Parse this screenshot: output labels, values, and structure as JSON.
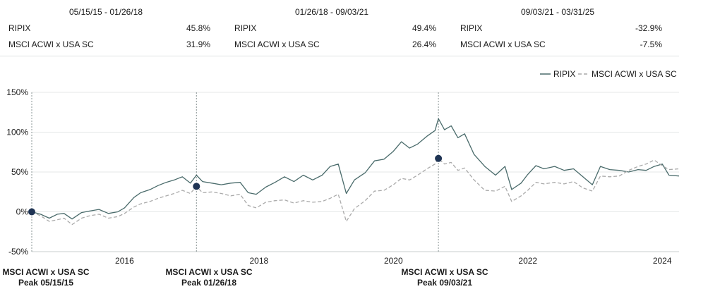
{
  "periods": [
    {
      "title": "05/15/15 - 01/26/18",
      "rows": [
        {
          "name": "RIPIX",
          "value": "45.8%"
        },
        {
          "name": "MSCI ACWI x USA SC",
          "value": "31.9%"
        }
      ]
    },
    {
      "title": "01/26/18 - 09/03/21",
      "rows": [
        {
          "name": "RIPIX",
          "value": "49.4%"
        },
        {
          "name": "MSCI ACWI x USA SC",
          "value": "26.4%"
        }
      ]
    },
    {
      "title": "09/03/21 - 03/31/25",
      "rows": [
        {
          "name": "RIPIX",
          "value": "-32.9%"
        },
        {
          "name": "MSCI ACWI x USA SC",
          "value": "-7.5%"
        }
      ]
    }
  ],
  "peaks": [
    {
      "line1": "MSCI ACWI x USA SC",
      "line2": "Peak 05/15/15"
    },
    {
      "line1": "MSCI ACWI x USA SC",
      "line2": "Peak 01/26/18"
    },
    {
      "line1": "MSCI ACWI x USA SC",
      "line2": "Peak 09/03/21"
    }
  ],
  "colors": {
    "ripix": "#4a6b6b",
    "msci": "#aaaaaa",
    "grid": "#e4e7e7",
    "marker": "#1f3454",
    "text": "#1a1a1a"
  },
  "chart_data": {
    "type": "line",
    "title": "",
    "xlabel": "",
    "ylabel": "",
    "xlim": [
      2014.62,
      2024.25
    ],
    "ylim": [
      -50,
      150
    ],
    "yticks": [
      -50,
      0,
      50,
      100,
      150
    ],
    "ytick_labels": [
      "-50%",
      "0%",
      "50%",
      "100%",
      "150%"
    ],
    "xticks": [
      2016,
      2018,
      2020,
      2022,
      2024
    ],
    "xtick_labels": [
      "2016",
      "2018",
      "2020",
      "2022",
      "2024"
    ],
    "grid": true,
    "legend": "top-right",
    "peak_x": [
      2014.62,
      2017.07,
      2020.67
    ],
    "peak_y": [
      0,
      32,
      67
    ],
    "series": [
      {
        "name": "RIPIX",
        "style": "solid",
        "x": [
          2014.62,
          2014.75,
          2014.88,
          2015.0,
          2015.1,
          2015.22,
          2015.36,
          2015.48,
          2015.62,
          2015.76,
          2015.9,
          2016.0,
          2016.14,
          2016.24,
          2016.38,
          2016.5,
          2016.62,
          2016.74,
          2016.86,
          2016.98,
          2017.07,
          2017.16,
          2017.3,
          2017.44,
          2017.58,
          2017.72,
          2017.84,
          2017.96,
          2018.1,
          2018.24,
          2018.38,
          2018.52,
          2018.66,
          2018.8,
          2018.94,
          2019.06,
          2019.18,
          2019.3,
          2019.42,
          2019.58,
          2019.72,
          2019.86,
          2020.0,
          2020.12,
          2020.24,
          2020.36,
          2020.5,
          2020.62,
          2020.67,
          2020.76,
          2020.86,
          2020.96,
          2021.06,
          2021.2,
          2021.36,
          2021.52,
          2021.66,
          2021.76,
          2021.9,
          2022.0,
          2022.12,
          2022.24,
          2022.4,
          2022.54,
          2022.68,
          2022.82,
          2022.96,
          2023.08,
          2023.22,
          2023.36,
          2023.5,
          2023.64,
          2023.76,
          2023.88,
          2024.0,
          2024.1,
          2024.25
        ],
        "y": [
          0,
          -3,
          -8,
          -3,
          -2,
          -9,
          -1,
          1,
          3,
          -2,
          0,
          5,
          18,
          24,
          28,
          33,
          37,
          40,
          44,
          36,
          46,
          38,
          36,
          34,
          36,
          37,
          24,
          22,
          31,
          37,
          44,
          38,
          46,
          40,
          46,
          57,
          60,
          23,
          40,
          49,
          64,
          66,
          76,
          88,
          80,
          85,
          95,
          102,
          117,
          103,
          108,
          93,
          98,
          72,
          57,
          46,
          57,
          28,
          36,
          47,
          58,
          54,
          57,
          52,
          54,
          44,
          34,
          57,
          53,
          52,
          50,
          53,
          52,
          57,
          60,
          46,
          45
        ]
      },
      {
        "name": "MSCI ACWI x USA SC",
        "style": "dashed",
        "x": [
          2014.62,
          2014.75,
          2014.88,
          2015.0,
          2015.1,
          2015.22,
          2015.36,
          2015.48,
          2015.62,
          2015.76,
          2015.9,
          2016.0,
          2016.14,
          2016.24,
          2016.38,
          2016.5,
          2016.62,
          2016.74,
          2016.86,
          2016.98,
          2017.07,
          2017.16,
          2017.3,
          2017.44,
          2017.58,
          2017.72,
          2017.84,
          2017.96,
          2018.1,
          2018.24,
          2018.38,
          2018.52,
          2018.66,
          2018.8,
          2018.94,
          2019.06,
          2019.18,
          2019.3,
          2019.42,
          2019.58,
          2019.72,
          2019.86,
          2020.0,
          2020.12,
          2020.24,
          2020.36,
          2020.5,
          2020.62,
          2020.67,
          2020.76,
          2020.86,
          2020.96,
          2021.06,
          2021.2,
          2021.36,
          2021.52,
          2021.66,
          2021.76,
          2021.9,
          2022.0,
          2022.12,
          2022.24,
          2022.4,
          2022.54,
          2022.68,
          2022.82,
          2022.96,
          2023.08,
          2023.22,
          2023.36,
          2023.5,
          2023.64,
          2023.76,
          2023.88,
          2024.0,
          2024.1,
          2024.25
        ],
        "y": [
          0,
          -5,
          -12,
          -10,
          -8,
          -16,
          -8,
          -5,
          -3,
          -8,
          -6,
          -2,
          6,
          10,
          13,
          17,
          20,
          23,
          27,
          23,
          32,
          24,
          25,
          23,
          20,
          22,
          8,
          5,
          12,
          14,
          15,
          11,
          14,
          12,
          13,
          17,
          22,
          -12,
          4,
          14,
          26,
          27,
          34,
          42,
          40,
          46,
          54,
          60,
          67,
          60,
          62,
          52,
          55,
          40,
          27,
          26,
          32,
          13,
          20,
          27,
          37,
          35,
          37,
          35,
          38,
          30,
          26,
          45,
          44,
          45,
          52,
          57,
          60,
          65,
          58,
          53,
          54
        ]
      }
    ]
  }
}
